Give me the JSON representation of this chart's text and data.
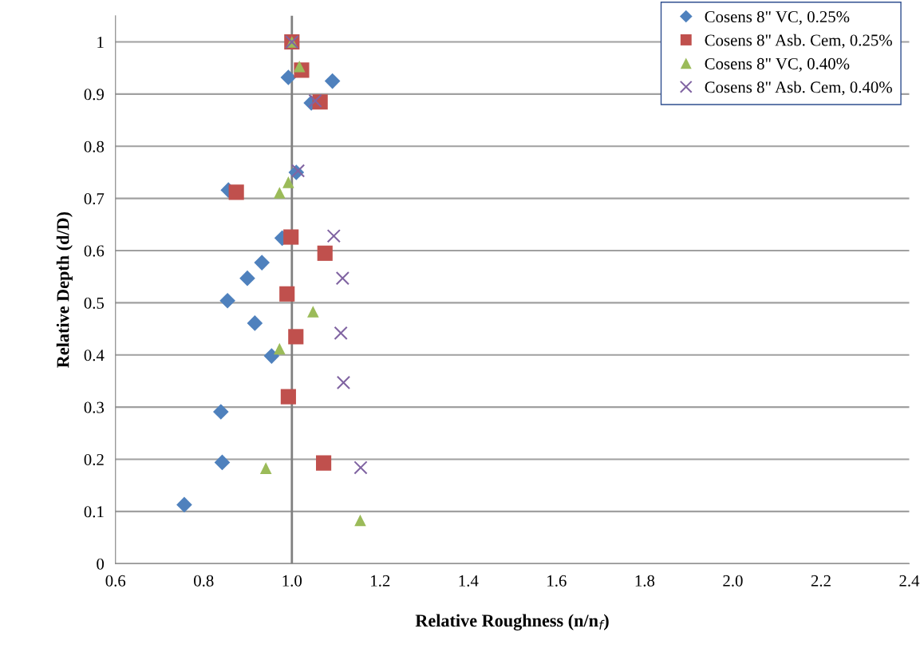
{
  "chart_data": {
    "type": "scatter",
    "xlabel": "Relative Roughness (n/n$_{f}$)",
    "ylabel": "Relative Depth (d/D)",
    "xlim": [
      0.6,
      2.4
    ],
    "xticks": [
      0.6,
      0.8,
      {
        "value": 1.0,
        "label": "1.0"
      },
      1.2,
      1.4,
      1.6,
      1.8,
      {
        "value": 2.0,
        "label": "2.0"
      },
      2.2,
      2.4
    ],
    "ylim": [
      0,
      1.05
    ],
    "yticks": [
      0,
      0.1,
      0.2,
      0.3,
      0.4,
      0.5,
      0.6,
      0.7,
      0.8,
      0.9,
      1
    ],
    "grid": "y",
    "legend": "top right",
    "ref_lines": [
      {
        "axis": "x",
        "value": 1.0,
        "color": "#808080"
      }
    ],
    "series": [
      {
        "name": "Cosens 8\" VC, 0.25%",
        "color": "#4f81bd",
        "marker": "diamond",
        "x": [
          0.992,
          1.092,
          1.044,
          1.01,
          0.856,
          0.978,
          0.932,
          0.899,
          0.854,
          0.916,
          0.954,
          0.839,
          0.842,
          0.756
        ],
        "values": [
          0.932,
          0.925,
          0.883,
          0.75,
          0.716,
          0.624,
          0.577,
          0.547,
          0.504,
          0.461,
          0.398,
          0.291,
          0.194,
          0.113
        ]
      },
      {
        "name": "Cosens 8\" Asb. Cem, 0.25%",
        "color": "#c0504d",
        "marker": "square",
        "x": [
          1.0,
          1.022,
          1.064,
          0.874,
          0.998,
          1.075,
          0.989,
          1.009,
          0.992,
          1.072
        ],
        "values": [
          1.0,
          0.946,
          0.885,
          0.712,
          0.626,
          0.595,
          0.517,
          0.435,
          0.32,
          0.193
        ]
      },
      {
        "name": "Cosens 8\" VC, 0.40%",
        "color": "#9bbb59",
        "marker": "triangle",
        "x": [
          1.0,
          1.017,
          0.992,
          0.972,
          1.048,
          0.972,
          0.941,
          1.155
        ],
        "values": [
          1.0,
          0.953,
          0.731,
          0.711,
          0.483,
          0.412,
          0.183,
          0.083
        ]
      },
      {
        "name": "Cosens 8\" Asb. Cem, 0.40%",
        "color": "#8064a2",
        "marker": "cross",
        "x": [
          1.0,
          1.053,
          1.014,
          1.095,
          1.115,
          1.111,
          1.117,
          1.156
        ],
        "values": [
          1.0,
          0.887,
          0.753,
          0.628,
          0.547,
          0.442,
          0.347,
          0.184
        ]
      }
    ]
  }
}
